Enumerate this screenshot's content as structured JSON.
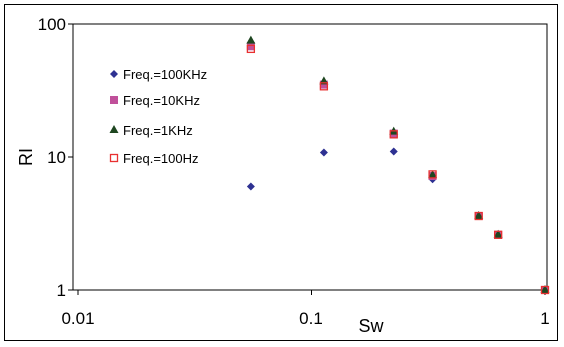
{
  "chart_data": {
    "type": "scatter",
    "xscale": "log",
    "yscale": "log",
    "xlabel": "Sw",
    "ylabel": "RI",
    "xlim": [
      0.01,
      1
    ],
    "ylim": [
      1,
      100
    ],
    "xticks": [
      "0.01",
      "0.1",
      "1"
    ],
    "yticks": [
      "1",
      "10",
      "100"
    ],
    "grid": false,
    "legend_position": "left, inside plot",
    "series": [
      {
        "name": "Freq.=100KHz",
        "marker": "diamond",
        "color": "#2e3192",
        "points": [
          [
            0.055,
            6.0
          ],
          [
            0.113,
            10.8
          ],
          [
            0.225,
            11.0
          ],
          [
            0.33,
            6.8
          ],
          [
            0.52,
            3.6
          ],
          [
            0.63,
            2.6
          ],
          [
            1.0,
            1.0
          ]
        ]
      },
      {
        "name": "Freq.=10KHz",
        "marker": "square",
        "color": "#c0509a",
        "points": [
          [
            0.055,
            68
          ],
          [
            0.113,
            35
          ],
          [
            0.225,
            15
          ],
          [
            0.33,
            7.2
          ],
          [
            0.52,
            3.6
          ],
          [
            0.63,
            2.6
          ],
          [
            1.0,
            1.0
          ]
        ]
      },
      {
        "name": "Freq.=1KHz",
        "marker": "triangle",
        "color": "#1e4620",
        "points": [
          [
            0.055,
            75
          ],
          [
            0.113,
            37
          ],
          [
            0.225,
            15.5
          ],
          [
            0.33,
            7.3
          ],
          [
            0.52,
            3.6
          ],
          [
            0.63,
            2.6
          ],
          [
            1.0,
            1.0
          ]
        ]
      },
      {
        "name": "Freq.=100Hz",
        "marker": "open-square",
        "color": "#e83030",
        "points": [
          [
            0.055,
            65
          ],
          [
            0.113,
            34
          ],
          [
            0.225,
            14.8
          ],
          [
            0.33,
            7.4
          ],
          [
            0.52,
            3.6
          ],
          [
            0.63,
            2.6
          ],
          [
            1.0,
            1.0
          ]
        ]
      }
    ]
  }
}
